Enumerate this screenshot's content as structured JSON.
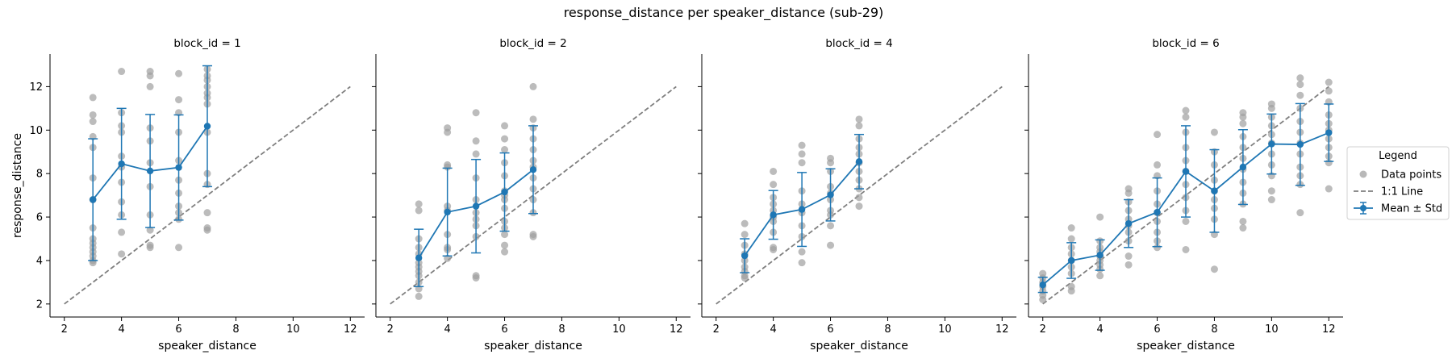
{
  "chart_data": {
    "type": "scatter",
    "title": "response_distance per speaker_distance (sub-29)",
    "xlabel": "speaker_distance",
    "ylabel": "response_distance",
    "xlim": [
      1.5,
      12.5
    ],
    "ylim": [
      1.4,
      13.5
    ],
    "xticks": [
      2,
      4,
      6,
      8,
      10,
      12
    ],
    "yticks": [
      2,
      4,
      6,
      8,
      10,
      12
    ],
    "identity_line": [
      2,
      12
    ],
    "grid": false,
    "legend": {
      "title": "Legend",
      "placement": "right",
      "entries": [
        "Data points",
        "1:1 Line",
        "Mean ± Std"
      ]
    },
    "colors": {
      "points": "#a0a0a0",
      "mean": "#1f77b4",
      "identity": "#7f7f7f"
    },
    "panels": [
      {
        "title": "block_id = 1",
        "points": [
          [
            3,
            11.5
          ],
          [
            3,
            10.7
          ],
          [
            3,
            10.4
          ],
          [
            3,
            9.7
          ],
          [
            3,
            9.2
          ],
          [
            3,
            7.8
          ],
          [
            3,
            6.8
          ],
          [
            3,
            5.5
          ],
          [
            3,
            5.0
          ],
          [
            3,
            4.8
          ],
          [
            3,
            4.6
          ],
          [
            3,
            4.4
          ],
          [
            3,
            4.2
          ],
          [
            3,
            4.0
          ],
          [
            3,
            3.9
          ],
          [
            4,
            12.7
          ],
          [
            4,
            10.8
          ],
          [
            4,
            10.2
          ],
          [
            4,
            9.9
          ],
          [
            4,
            8.8
          ],
          [
            4,
            8.3
          ],
          [
            4,
            7.6
          ],
          [
            4,
            6.7
          ],
          [
            4,
            6.1
          ],
          [
            4,
            5.3
          ],
          [
            4,
            4.3
          ],
          [
            5,
            12.7
          ],
          [
            5,
            12.5
          ],
          [
            5,
            12.0
          ],
          [
            5,
            10.1
          ],
          [
            5,
            9.5
          ],
          [
            5,
            8.5
          ],
          [
            5,
            7.4
          ],
          [
            5,
            6.1
          ],
          [
            5,
            5.4
          ],
          [
            5,
            4.7
          ],
          [
            5,
            4.6
          ],
          [
            6,
            12.6
          ],
          [
            6,
            11.4
          ],
          [
            6,
            10.8
          ],
          [
            6,
            9.9
          ],
          [
            6,
            8.6
          ],
          [
            6,
            7.7
          ],
          [
            6,
            7.1
          ],
          [
            6,
            6.5
          ],
          [
            6,
            6.2
          ],
          [
            6,
            5.9
          ],
          [
            6,
            4.6
          ],
          [
            7,
            12.8
          ],
          [
            7,
            12.5
          ],
          [
            7,
            12.3
          ],
          [
            7,
            12.0
          ],
          [
            7,
            11.7
          ],
          [
            7,
            11.5
          ],
          [
            7,
            11.2
          ],
          [
            7,
            9.9
          ],
          [
            7,
            8.0
          ],
          [
            7,
            7.5
          ],
          [
            7,
            6.2
          ],
          [
            7,
            5.5
          ],
          [
            7,
            5.4
          ]
        ],
        "means": [
          {
            "x": 3,
            "mean": 6.8,
            "std": 2.8
          },
          {
            "x": 4,
            "mean": 8.45,
            "std": 2.55
          },
          {
            "x": 5,
            "mean": 8.12,
            "std": 2.6
          },
          {
            "x": 6,
            "mean": 8.28,
            "std": 2.42
          },
          {
            "x": 7,
            "mean": 10.18,
            "std": 2.78
          }
        ]
      },
      {
        "title": "block_id = 2",
        "points": [
          [
            3,
            6.6
          ],
          [
            3,
            6.3
          ],
          [
            3,
            5.0
          ],
          [
            3,
            4.6
          ],
          [
            3,
            4.3
          ],
          [
            3,
            3.9
          ],
          [
            3,
            3.7
          ],
          [
            3,
            3.5
          ],
          [
            3,
            3.3
          ],
          [
            3,
            3.0
          ],
          [
            3,
            2.7
          ],
          [
            3,
            2.35
          ],
          [
            4,
            10.1
          ],
          [
            4,
            9.9
          ],
          [
            4,
            8.4
          ],
          [
            4,
            8.3
          ],
          [
            4,
            6.5
          ],
          [
            4,
            6.3
          ],
          [
            4,
            5.2
          ],
          [
            4,
            4.6
          ],
          [
            4,
            4.5
          ],
          [
            4,
            4.1
          ],
          [
            5,
            10.8
          ],
          [
            5,
            9.5
          ],
          [
            5,
            8.9
          ],
          [
            5,
            7.8
          ],
          [
            5,
            6.8
          ],
          [
            5,
            6.2
          ],
          [
            5,
            5.9
          ],
          [
            5,
            5.6
          ],
          [
            5,
            5.1
          ],
          [
            5,
            3.3
          ],
          [
            5,
            3.2
          ],
          [
            6,
            10.2
          ],
          [
            6,
            9.6
          ],
          [
            6,
            9.1
          ],
          [
            6,
            8.5
          ],
          [
            6,
            7.9
          ],
          [
            6,
            7.2
          ],
          [
            6,
            7.0
          ],
          [
            6,
            6.8
          ],
          [
            6,
            6.4
          ],
          [
            6,
            5.8
          ],
          [
            6,
            5.5
          ],
          [
            6,
            5.2
          ],
          [
            6,
            4.7
          ],
          [
            6,
            4.4
          ],
          [
            7,
            12.0
          ],
          [
            7,
            10.5
          ],
          [
            7,
            10.1
          ],
          [
            7,
            9.6
          ],
          [
            7,
            9.1
          ],
          [
            7,
            8.6
          ],
          [
            7,
            8.3
          ],
          [
            7,
            7.8
          ],
          [
            7,
            7.3
          ],
          [
            7,
            6.8
          ],
          [
            7,
            6.2
          ],
          [
            7,
            5.2
          ],
          [
            7,
            5.1
          ]
        ],
        "means": [
          {
            "x": 3,
            "mean": 4.12,
            "std": 1.32
          },
          {
            "x": 4,
            "mean": 6.23,
            "std": 2.02
          },
          {
            "x": 5,
            "mean": 6.5,
            "std": 2.15
          },
          {
            "x": 6,
            "mean": 7.15,
            "std": 1.8
          },
          {
            "x": 7,
            "mean": 8.18,
            "std": 2.02
          }
        ]
      },
      {
        "title": "block_id = 4",
        "points": [
          [
            3,
            5.7
          ],
          [
            3,
            5.2
          ],
          [
            3,
            4.7
          ],
          [
            3,
            4.3
          ],
          [
            3,
            4.0
          ],
          [
            3,
            3.7
          ],
          [
            3,
            3.5
          ],
          [
            3,
            3.3
          ],
          [
            3,
            3.2
          ],
          [
            4,
            8.1
          ],
          [
            4,
            7.5
          ],
          [
            4,
            6.9
          ],
          [
            4,
            6.6
          ],
          [
            4,
            6.3
          ],
          [
            4,
            6.0
          ],
          [
            4,
            5.8
          ],
          [
            4,
            5.3
          ],
          [
            4,
            4.6
          ],
          [
            4,
            4.5
          ],
          [
            5,
            9.3
          ],
          [
            5,
            8.9
          ],
          [
            5,
            8.5
          ],
          [
            5,
            7.2
          ],
          [
            5,
            6.6
          ],
          [
            5,
            6.2
          ],
          [
            5,
            5.6
          ],
          [
            5,
            5.1
          ],
          [
            5,
            4.4
          ],
          [
            5,
            3.9
          ],
          [
            6,
            8.7
          ],
          [
            6,
            8.5
          ],
          [
            6,
            8.1
          ],
          [
            6,
            7.4
          ],
          [
            6,
            7.1
          ],
          [
            6,
            6.8
          ],
          [
            6,
            6.3
          ],
          [
            6,
            6.1
          ],
          [
            6,
            5.6
          ],
          [
            6,
            4.7
          ],
          [
            7,
            10.5
          ],
          [
            7,
            10.2
          ],
          [
            7,
            9.6
          ],
          [
            7,
            9.2
          ],
          [
            7,
            8.9
          ],
          [
            7,
            8.5
          ],
          [
            7,
            8.1
          ],
          [
            7,
            7.7
          ],
          [
            7,
            7.3
          ],
          [
            7,
            6.9
          ],
          [
            7,
            6.5
          ]
        ],
        "means": [
          {
            "x": 3,
            "mean": 4.22,
            "std": 0.78
          },
          {
            "x": 4,
            "mean": 6.1,
            "std": 1.12
          },
          {
            "x": 5,
            "mean": 6.35,
            "std": 1.7
          },
          {
            "x": 6,
            "mean": 7.02,
            "std": 1.2
          },
          {
            "x": 7,
            "mean": 8.55,
            "std": 1.25
          }
        ]
      },
      {
        "title": "block_id = 6",
        "points": [
          [
            2,
            3.4
          ],
          [
            2,
            3.2
          ],
          [
            2,
            3.0
          ],
          [
            2,
            2.8
          ],
          [
            2,
            2.6
          ],
          [
            2,
            2.4
          ],
          [
            2,
            2.2
          ],
          [
            3,
            5.5
          ],
          [
            3,
            5.0
          ],
          [
            3,
            4.6
          ],
          [
            3,
            4.3
          ],
          [
            3,
            4.0
          ],
          [
            3,
            3.7
          ],
          [
            3,
            3.4
          ],
          [
            3,
            2.8
          ],
          [
            3,
            2.6
          ],
          [
            4,
            6.0
          ],
          [
            4,
            4.9
          ],
          [
            4,
            4.6
          ],
          [
            4,
            4.4
          ],
          [
            4,
            4.2
          ],
          [
            4,
            4.0
          ],
          [
            4,
            3.8
          ],
          [
            4,
            3.6
          ],
          [
            4,
            3.3
          ],
          [
            5,
            7.3
          ],
          [
            5,
            7.1
          ],
          [
            5,
            6.7
          ],
          [
            5,
            6.3
          ],
          [
            5,
            5.9
          ],
          [
            5,
            5.6
          ],
          [
            5,
            5.3
          ],
          [
            5,
            4.9
          ],
          [
            5,
            4.2
          ],
          [
            5,
            3.8
          ],
          [
            6,
            9.8
          ],
          [
            6,
            8.4
          ],
          [
            6,
            7.9
          ],
          [
            6,
            7.2
          ],
          [
            6,
            6.6
          ],
          [
            6,
            6.2
          ],
          [
            6,
            5.8
          ],
          [
            6,
            5.3
          ],
          [
            6,
            4.9
          ],
          [
            6,
            4.6
          ],
          [
            7,
            10.9
          ],
          [
            7,
            10.6
          ],
          [
            7,
            9.9
          ],
          [
            7,
            9.2
          ],
          [
            7,
            8.6
          ],
          [
            7,
            8.1
          ],
          [
            7,
            7.5
          ],
          [
            7,
            6.9
          ],
          [
            7,
            6.3
          ],
          [
            7,
            5.8
          ],
          [
            7,
            4.5
          ],
          [
            8,
            9.9
          ],
          [
            8,
            9.0
          ],
          [
            8,
            8.4
          ],
          [
            8,
            7.7
          ],
          [
            8,
            7.2
          ],
          [
            8,
            6.8
          ],
          [
            8,
            6.4
          ],
          [
            8,
            5.9
          ],
          [
            8,
            5.2
          ],
          [
            8,
            3.6
          ],
          [
            9,
            10.8
          ],
          [
            9,
            10.6
          ],
          [
            9,
            10.3
          ],
          [
            9,
            9.7
          ],
          [
            9,
            9.2
          ],
          [
            9,
            8.7
          ],
          [
            9,
            8.2
          ],
          [
            9,
            7.6
          ],
          [
            9,
            7.1
          ],
          [
            9,
            6.6
          ],
          [
            9,
            5.8
          ],
          [
            9,
            5.5
          ],
          [
            10,
            11.2
          ],
          [
            10,
            11.0
          ],
          [
            10,
            10.6
          ],
          [
            10,
            10.2
          ],
          [
            10,
            9.8
          ],
          [
            10,
            9.4
          ],
          [
            10,
            8.9
          ],
          [
            10,
            8.4
          ],
          [
            10,
            7.9
          ],
          [
            10,
            7.2
          ],
          [
            10,
            6.8
          ],
          [
            11,
            12.4
          ],
          [
            11,
            12.1
          ],
          [
            11,
            11.6
          ],
          [
            11,
            11.0
          ],
          [
            11,
            10.4
          ],
          [
            11,
            9.9
          ],
          [
            11,
            9.4
          ],
          [
            11,
            8.9
          ],
          [
            11,
            8.3
          ],
          [
            11,
            7.9
          ],
          [
            11,
            7.5
          ],
          [
            11,
            6.2
          ],
          [
            12,
            12.2
          ],
          [
            12,
            11.8
          ],
          [
            12,
            11.3
          ],
          [
            12,
            10.7
          ],
          [
            12,
            10.3
          ],
          [
            12,
            10.0
          ],
          [
            12,
            9.6
          ],
          [
            12,
            9.2
          ],
          [
            12,
            8.8
          ],
          [
            12,
            8.5
          ],
          [
            12,
            7.3
          ]
        ],
        "means": [
          {
            "x": 2,
            "mean": 2.88,
            "std": 0.35
          },
          {
            "x": 3,
            "mean": 4.0,
            "std": 0.82
          },
          {
            "x": 4,
            "mean": 4.25,
            "std": 0.7
          },
          {
            "x": 5,
            "mean": 5.7,
            "std": 1.1
          },
          {
            "x": 6,
            "mean": 6.22,
            "std": 1.58
          },
          {
            "x": 7,
            "mean": 8.1,
            "std": 2.1
          },
          {
            "x": 8,
            "mean": 7.2,
            "std": 1.9
          },
          {
            "x": 9,
            "mean": 8.3,
            "std": 1.72
          },
          {
            "x": 10,
            "mean": 9.36,
            "std": 1.38
          },
          {
            "x": 11,
            "mean": 9.34,
            "std": 1.88
          },
          {
            "x": 12,
            "mean": 9.88,
            "std": 1.32
          }
        ]
      }
    ]
  }
}
